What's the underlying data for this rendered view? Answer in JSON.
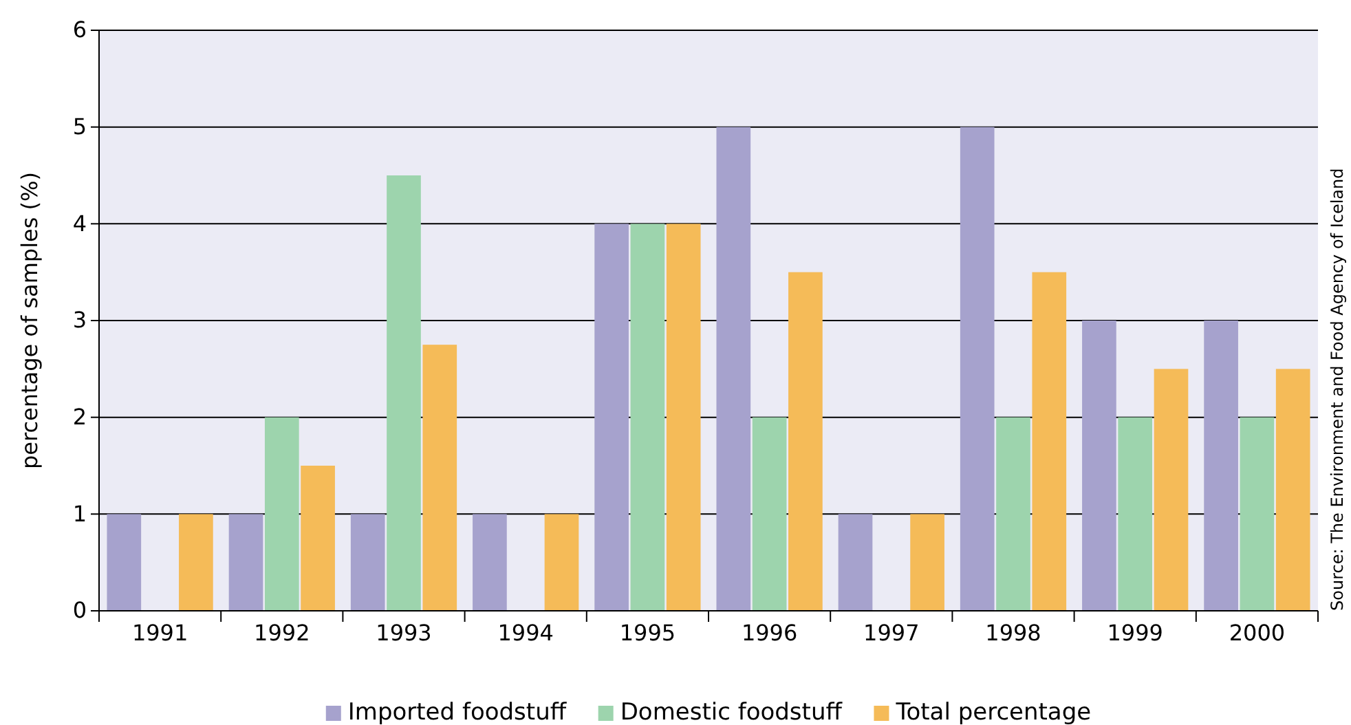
{
  "chart_data": {
    "type": "bar",
    "ylabel": "percentage of samples (%)",
    "categories": [
      "1991",
      "1992",
      "1993",
      "1994",
      "1995",
      "1996",
      "1997",
      "1998",
      "1999",
      "2000"
    ],
    "series": [
      {
        "name": "Imported foodstuff",
        "color": "#a6a2cd",
        "values": [
          1,
          1,
          1,
          1,
          4,
          5,
          1,
          5,
          3,
          3
        ]
      },
      {
        "name": "Domestic foodstuff",
        "color": "#9dd4ad",
        "values": [
          null,
          2,
          4.5,
          null,
          4,
          2,
          null,
          2,
          2,
          2
        ]
      },
      {
        "name": "Total percentage",
        "color": "#f5bb58",
        "values": [
          1,
          1.5,
          2.75,
          1,
          4,
          3.5,
          1,
          3.5,
          2.5,
          2.5
        ]
      }
    ],
    "ylim": [
      0,
      6
    ],
    "yticks": [
      0,
      1,
      2,
      3,
      4,
      5,
      6
    ],
    "grid": "y",
    "legend": "bottom",
    "annotations": [
      "Source: The Environment and Food Agency of Iceland"
    ]
  }
}
